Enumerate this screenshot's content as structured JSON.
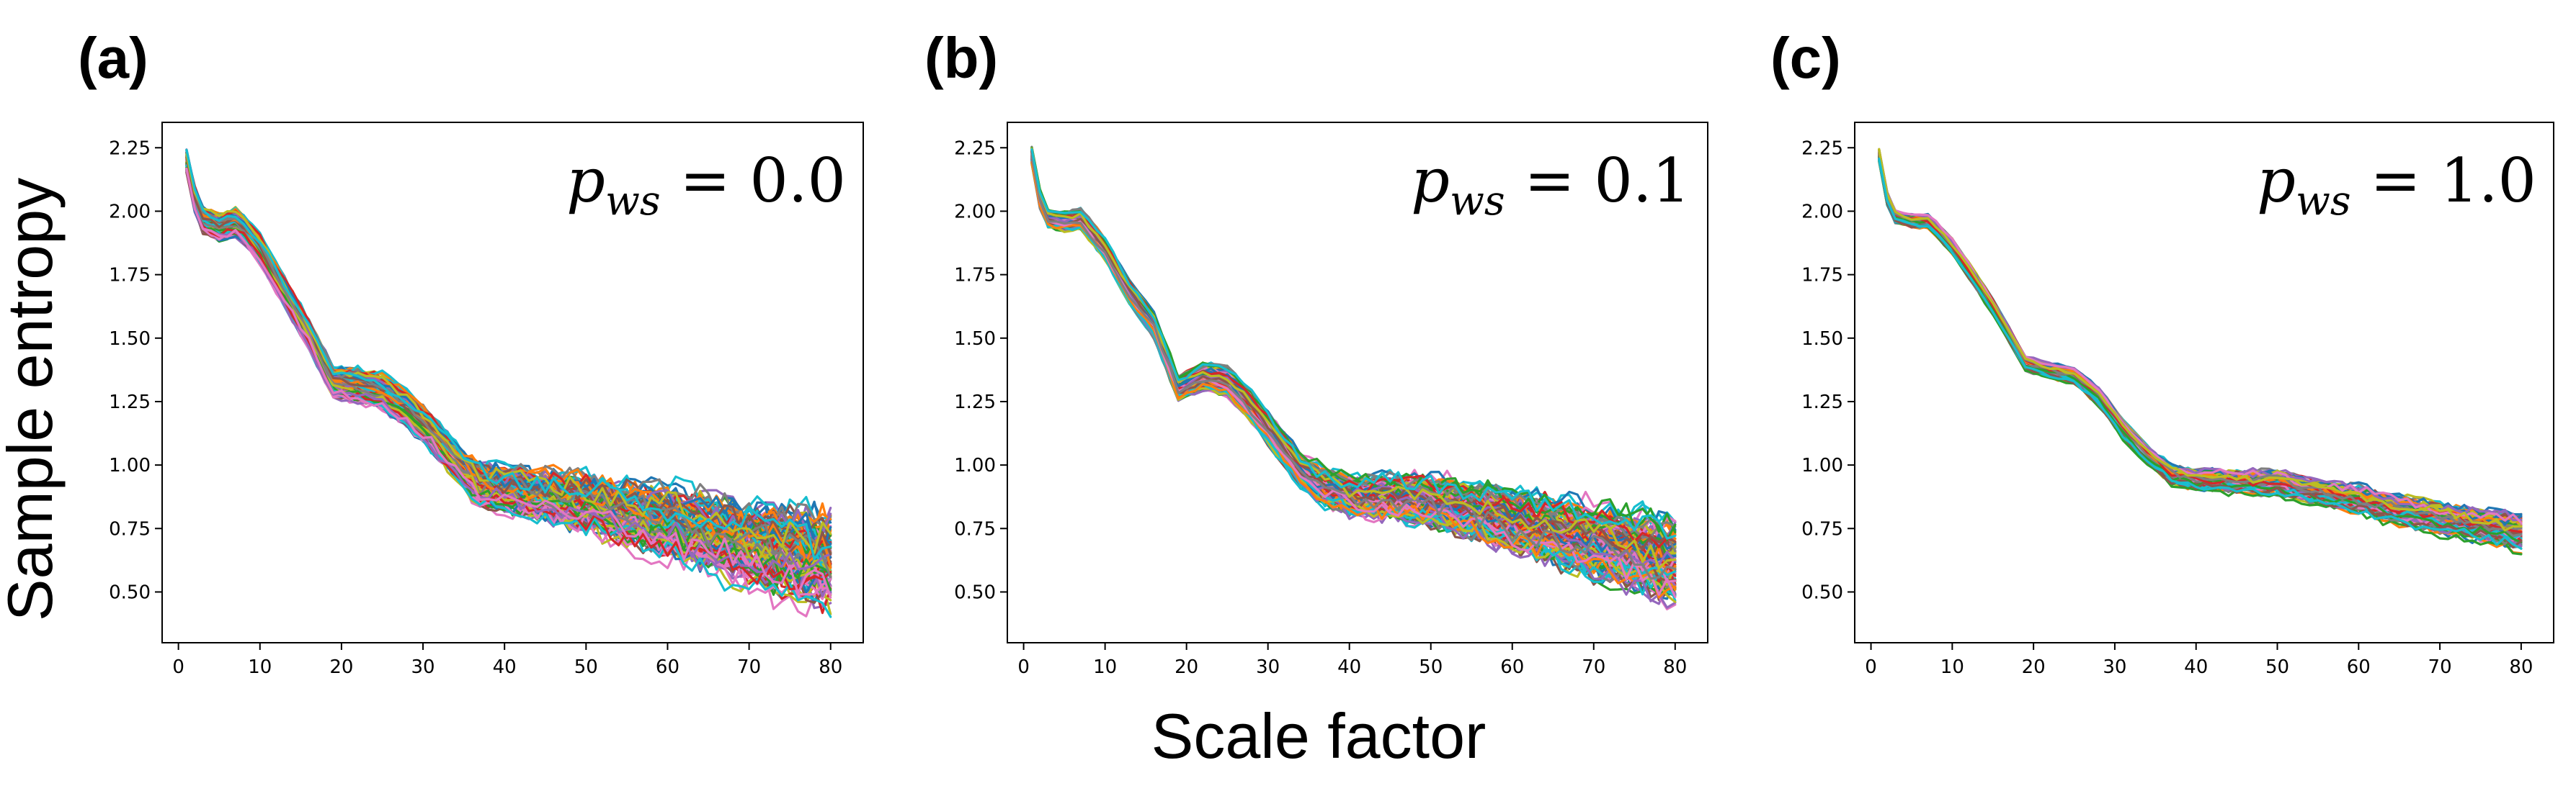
{
  "figure": {
    "common_xlabel": "Scale factor",
    "common_ylabel": "Sample entropy"
  },
  "chart_data": [
    {
      "type": "line",
      "panel_label": "(a)",
      "annotation": {
        "symbol": "p",
        "subscript": "ws",
        "equals": "=",
        "value": "0.0"
      },
      "xlim": [
        -2,
        84
      ],
      "ylim": [
        0.3,
        2.35
      ],
      "xticks": [
        0,
        10,
        20,
        30,
        40,
        50,
        60,
        70,
        80
      ],
      "yticks": [
        0.5,
        0.75,
        1.0,
        1.25,
        1.5,
        1.75,
        2.0,
        2.25
      ],
      "ytick_labels": [
        "0.50",
        "0.75",
        "1.00",
        "1.25",
        "1.50",
        "1.75",
        "2.00",
        "2.25"
      ],
      "x": [
        1,
        80
      ],
      "series_count": 100,
      "mean_curve": {
        "x": [
          1,
          2,
          3,
          5,
          7,
          8,
          10,
          13,
          16,
          19,
          22,
          25,
          28,
          31,
          34,
          37,
          40,
          45,
          50,
          55,
          60,
          65,
          70,
          75,
          80
        ],
        "y": [
          2.2,
          2.05,
          1.97,
          1.94,
          1.96,
          1.93,
          1.85,
          1.68,
          1.52,
          1.33,
          1.32,
          1.29,
          1.22,
          1.13,
          1.02,
          0.93,
          0.91,
          0.88,
          0.86,
          0.82,
          0.78,
          0.74,
          0.7,
          0.67,
          0.64
        ]
      },
      "spread": {
        "start": 0.06,
        "mid": 0.1,
        "end": 0.2
      }
    },
    {
      "type": "line",
      "panel_label": "(b)",
      "annotation": {
        "symbol": "p",
        "subscript": "ws",
        "equals": "=",
        "value": "0.1"
      },
      "xlim": [
        -2,
        84
      ],
      "ylim": [
        0.3,
        2.35
      ],
      "xticks": [
        0,
        10,
        20,
        30,
        40,
        50,
        60,
        70,
        80
      ],
      "yticks": [
        0.5,
        0.75,
        1.0,
        1.25,
        1.5,
        1.75,
        2.0,
        2.25
      ],
      "ytick_labels": [
        "0.50",
        "0.75",
        "1.00",
        "1.25",
        "1.50",
        "1.75",
        "2.00",
        "2.25"
      ],
      "x": [
        1,
        80
      ],
      "series_count": 100,
      "mean_curve": {
        "x": [
          1,
          2,
          3,
          5,
          7,
          8,
          10,
          13,
          16,
          19,
          22,
          25,
          28,
          31,
          34,
          37,
          40,
          45,
          50,
          55,
          60,
          65,
          70,
          75,
          80
        ],
        "y": [
          2.22,
          2.05,
          1.97,
          1.96,
          1.97,
          1.93,
          1.85,
          1.68,
          1.55,
          1.3,
          1.35,
          1.33,
          1.23,
          1.1,
          0.98,
          0.91,
          0.88,
          0.87,
          0.86,
          0.82,
          0.78,
          0.74,
          0.7,
          0.66,
          0.62
        ]
      },
      "spread": {
        "start": 0.04,
        "mid": 0.08,
        "end": 0.15
      }
    },
    {
      "type": "line",
      "panel_label": "(c)",
      "annotation": {
        "symbol": "p",
        "subscript": "ws",
        "equals": "=",
        "value": "1.0"
      },
      "xlim": [
        -2,
        84
      ],
      "ylim": [
        0.3,
        2.35
      ],
      "xticks": [
        0,
        10,
        20,
        30,
        40,
        50,
        60,
        70,
        80
      ],
      "yticks": [
        0.5,
        0.75,
        1.0,
        1.25,
        1.5,
        1.75,
        2.0,
        2.25
      ],
      "ytick_labels": [
        "0.50",
        "0.75",
        "1.00",
        "1.25",
        "1.50",
        "1.75",
        "2.00",
        "2.25"
      ],
      "x": [
        1,
        80
      ],
      "series_count": 100,
      "mean_curve": {
        "x": [
          1,
          2,
          3,
          5,
          7,
          8,
          10,
          13,
          16,
          19,
          22,
          25,
          28,
          31,
          34,
          37,
          40,
          45,
          50,
          55,
          60,
          65,
          70,
          75,
          80
        ],
        "y": [
          2.22,
          2.05,
          1.98,
          1.96,
          1.96,
          1.93,
          1.86,
          1.72,
          1.57,
          1.4,
          1.37,
          1.35,
          1.27,
          1.14,
          1.04,
          0.96,
          0.94,
          0.93,
          0.93,
          0.89,
          0.86,
          0.82,
          0.79,
          0.76,
          0.73
        ]
      },
      "spread": {
        "start": 0.03,
        "mid": 0.04,
        "end": 0.06
      }
    }
  ],
  "colors": {
    "palette": [
      "#1f77b4",
      "#ff7f0e",
      "#2ca02c",
      "#d62728",
      "#9467bd",
      "#8c564b",
      "#e377c2",
      "#7f7f7f",
      "#bcbd22",
      "#17becf"
    ],
    "axis": "#000000",
    "background": "#ffffff"
  }
}
